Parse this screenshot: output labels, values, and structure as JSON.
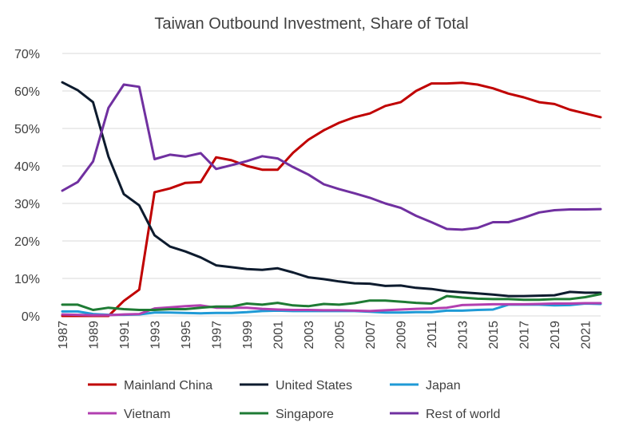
{
  "chart_data": {
    "type": "line",
    "title": "Taiwan Outbound Investment, Share of Total",
    "xlabel": "",
    "ylabel": "",
    "ylim": [
      0,
      70
    ],
    "yticks": [
      "0%",
      "10%",
      "20%",
      "30%",
      "40%",
      "50%",
      "60%",
      "70%"
    ],
    "x": [
      1987,
      1988,
      1989,
      1990,
      1991,
      1992,
      1993,
      1994,
      1995,
      1996,
      1997,
      1998,
      1999,
      2000,
      2001,
      2002,
      2003,
      2004,
      2005,
      2006,
      2007,
      2008,
      2009,
      2010,
      2011,
      2012,
      2013,
      2014,
      2015,
      2016,
      2017,
      2018,
      2019,
      2020,
      2021,
      2022
    ],
    "xtick_labels": [
      "1987",
      "1989",
      "1991",
      "1993",
      "1995",
      "1997",
      "1999",
      "2001",
      "2003",
      "2005",
      "2007",
      "2009",
      "2011",
      "2013",
      "2015",
      "2017",
      "2019",
      "2021"
    ],
    "grid": true,
    "legend_position": "bottom",
    "series": [
      {
        "name": "Mainland China",
        "color": "#c00000",
        "values": [
          0,
          0,
          0,
          0,
          4,
          7,
          33,
          34,
          35.5,
          35.7,
          42.3,
          41.5,
          40,
          39,
          39,
          43.5,
          47,
          49.5,
          51.5,
          53,
          54,
          56,
          57,
          60,
          62,
          62,
          62.2,
          61.7,
          60.7,
          59.3,
          58.3,
          57,
          56.5,
          55,
          54,
          53
        ]
      },
      {
        "name": "United States",
        "color": "#0d1b2e",
        "values": [
          62.3,
          60.2,
          57,
          42.5,
          32.5,
          29.5,
          21.5,
          18.5,
          17.2,
          15.6,
          13.5,
          13,
          12.5,
          12.3,
          12.7,
          11.6,
          10.3,
          9.8,
          9.2,
          8.7,
          8.6,
          8,
          8.1,
          7.5,
          7.2,
          6.6,
          6.3,
          6,
          5.7,
          5.3,
          5.3,
          5.4,
          5.5,
          6.4,
          6.2,
          6.2
        ]
      },
      {
        "name": "Japan",
        "color": "#1f9ad6",
        "values": [
          1.2,
          1.2,
          0.5,
          0.3,
          0.3,
          0.4,
          0.9,
          0.9,
          0.8,
          0.7,
          0.8,
          0.8,
          1,
          1.3,
          1.4,
          1.3,
          1.3,
          1.3,
          1.3,
          1.3,
          1.1,
          0.9,
          0.9,
          1,
          1,
          1.4,
          1.4,
          1.6,
          1.7,
          3,
          3,
          3,
          2.8,
          2.9,
          3.3,
          3.2
        ]
      },
      {
        "name": "Vietnam",
        "color": "#b23fb0",
        "values": [
          0.4,
          0.3,
          0.2,
          0.2,
          0.4,
          0.5,
          2,
          2.3,
          2.6,
          2.8,
          2.2,
          2.2,
          2.2,
          1.9,
          1.7,
          1.6,
          1.6,
          1.5,
          1.5,
          1.4,
          1.3,
          1.5,
          1.7,
          1.9,
          2,
          2.2,
          2.9,
          3,
          3.1,
          3.1,
          3.1,
          3.2,
          3.3,
          3.3,
          3.4,
          3.4
        ]
      },
      {
        "name": "Singapore",
        "color": "#1e7b34",
        "values": [
          3,
          3,
          1.6,
          2.2,
          1.8,
          1.6,
          1.6,
          1.8,
          1.8,
          2.2,
          2.5,
          2.5,
          3.3,
          3,
          3.5,
          2.8,
          2.6,
          3.2,
          3,
          3.4,
          4.1,
          4.1,
          3.8,
          3.5,
          3.3,
          5.3,
          4.9,
          4.6,
          4.5,
          4.5,
          4.3,
          4.3,
          4.5,
          4.5,
          5,
          5.8
        ]
      },
      {
        "name": "Rest of world",
        "color": "#7030a0",
        "values": [
          33.4,
          35.7,
          41.2,
          55.5,
          61.7,
          61.1,
          41.8,
          43,
          42.5,
          43.4,
          39.2,
          40.2,
          41.3,
          42.6,
          42,
          39.7,
          37.7,
          35.1,
          33.8,
          32.7,
          31.5,
          30,
          28.8,
          26.7,
          25,
          23.2,
          23,
          23.5,
          25,
          25,
          26.2,
          27.6,
          28.2,
          28.4,
          28.4,
          28.5
        ]
      }
    ]
  }
}
